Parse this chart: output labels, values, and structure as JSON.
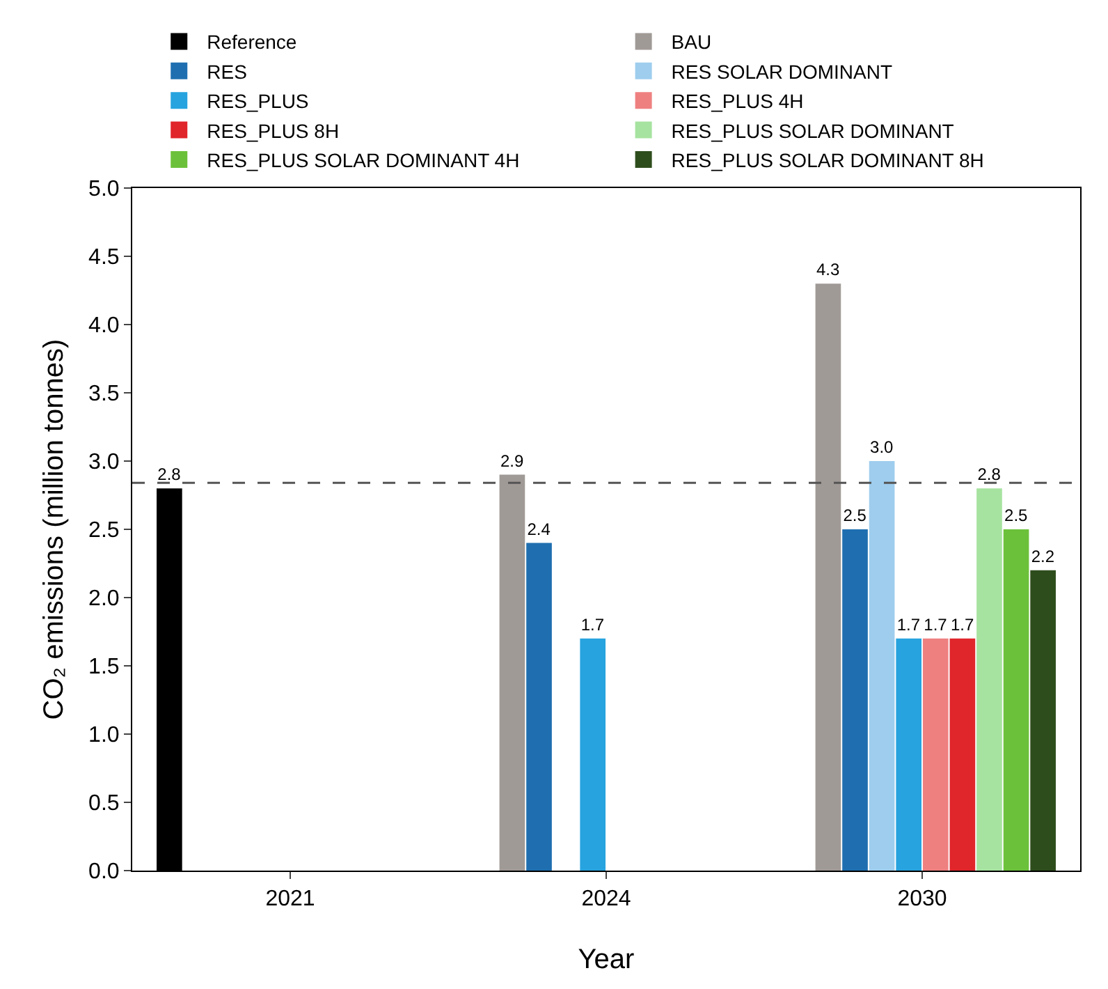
{
  "chart_data": {
    "type": "bar",
    "xlabel": "Year",
    "ylabel": "CO₂ emissions (million tonnes)",
    "categories": [
      "2021",
      "2024",
      "2030"
    ],
    "series": [
      {
        "name": "Reference",
        "color": "#000000",
        "values": [
          2.8,
          null,
          null
        ]
      },
      {
        "name": "BAU",
        "color": "#a09a96",
        "values": [
          null,
          2.9,
          4.3
        ]
      },
      {
        "name": "RES",
        "color": "#1f6fb0",
        "values": [
          null,
          2.4,
          2.5
        ]
      },
      {
        "name": "RES SOLAR DOMINANT",
        "color": "#9ecdee",
        "values": [
          null,
          null,
          3.0
        ],
        "value_labels": [
          null,
          null,
          "3.0"
        ]
      },
      {
        "name": "RES_PLUS",
        "color": "#27a3df",
        "values": [
          null,
          1.7,
          1.7
        ]
      },
      {
        "name": "RES_PLUS 4H",
        "color": "#ef8080",
        "values": [
          null,
          null,
          1.7
        ]
      },
      {
        "name": "RES_PLUS 8H",
        "color": "#e0252b",
        "values": [
          null,
          null,
          1.7
        ]
      },
      {
        "name": "RES_PLUS SOLAR DOMINANT",
        "color": "#a6e3a0",
        "values": [
          null,
          null,
          2.8
        ]
      },
      {
        "name": "RES_PLUS SOLAR DOMINANT 4H",
        "color": "#6cc13a",
        "values": [
          null,
          null,
          2.5
        ]
      },
      {
        "name": "RES_PLUS SOLAR DOMINANT 8H",
        "color": "#2e4d1c",
        "values": [
          null,
          null,
          2.2
        ]
      }
    ],
    "ylim": [
      0,
      5
    ],
    "yticks": [
      {
        "value": 0,
        "label": "0.0"
      },
      {
        "value": 0.5,
        "label": "0.5"
      },
      {
        "value": 1,
        "label": "1.0"
      },
      {
        "value": 1.5,
        "label": "1.5"
      },
      {
        "value": 2,
        "label": "2.0"
      },
      {
        "value": 2.5,
        "label": "2.5"
      },
      {
        "value": 3,
        "label": "3.0"
      },
      {
        "value": 3.5,
        "label": "3.5"
      },
      {
        "value": 4,
        "label": "4.0"
      },
      {
        "value": 4.5,
        "label": "4.5"
      },
      {
        "value": 5,
        "label": "5.0"
      }
    ],
    "ref_lines": [
      {
        "axis": "y",
        "value": 2.84,
        "line_style": "dashed",
        "color": "#555555"
      }
    ],
    "data_labels": true,
    "grid": false,
    "legend": "top"
  }
}
